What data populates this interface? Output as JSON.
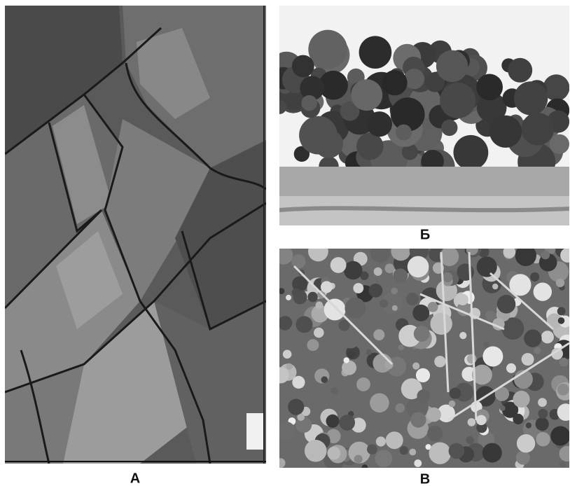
{
  "panels": [
    {
      "label": "А"
    },
    {
      "label": "Б"
    },
    {
      "label": "В"
    }
  ]
}
